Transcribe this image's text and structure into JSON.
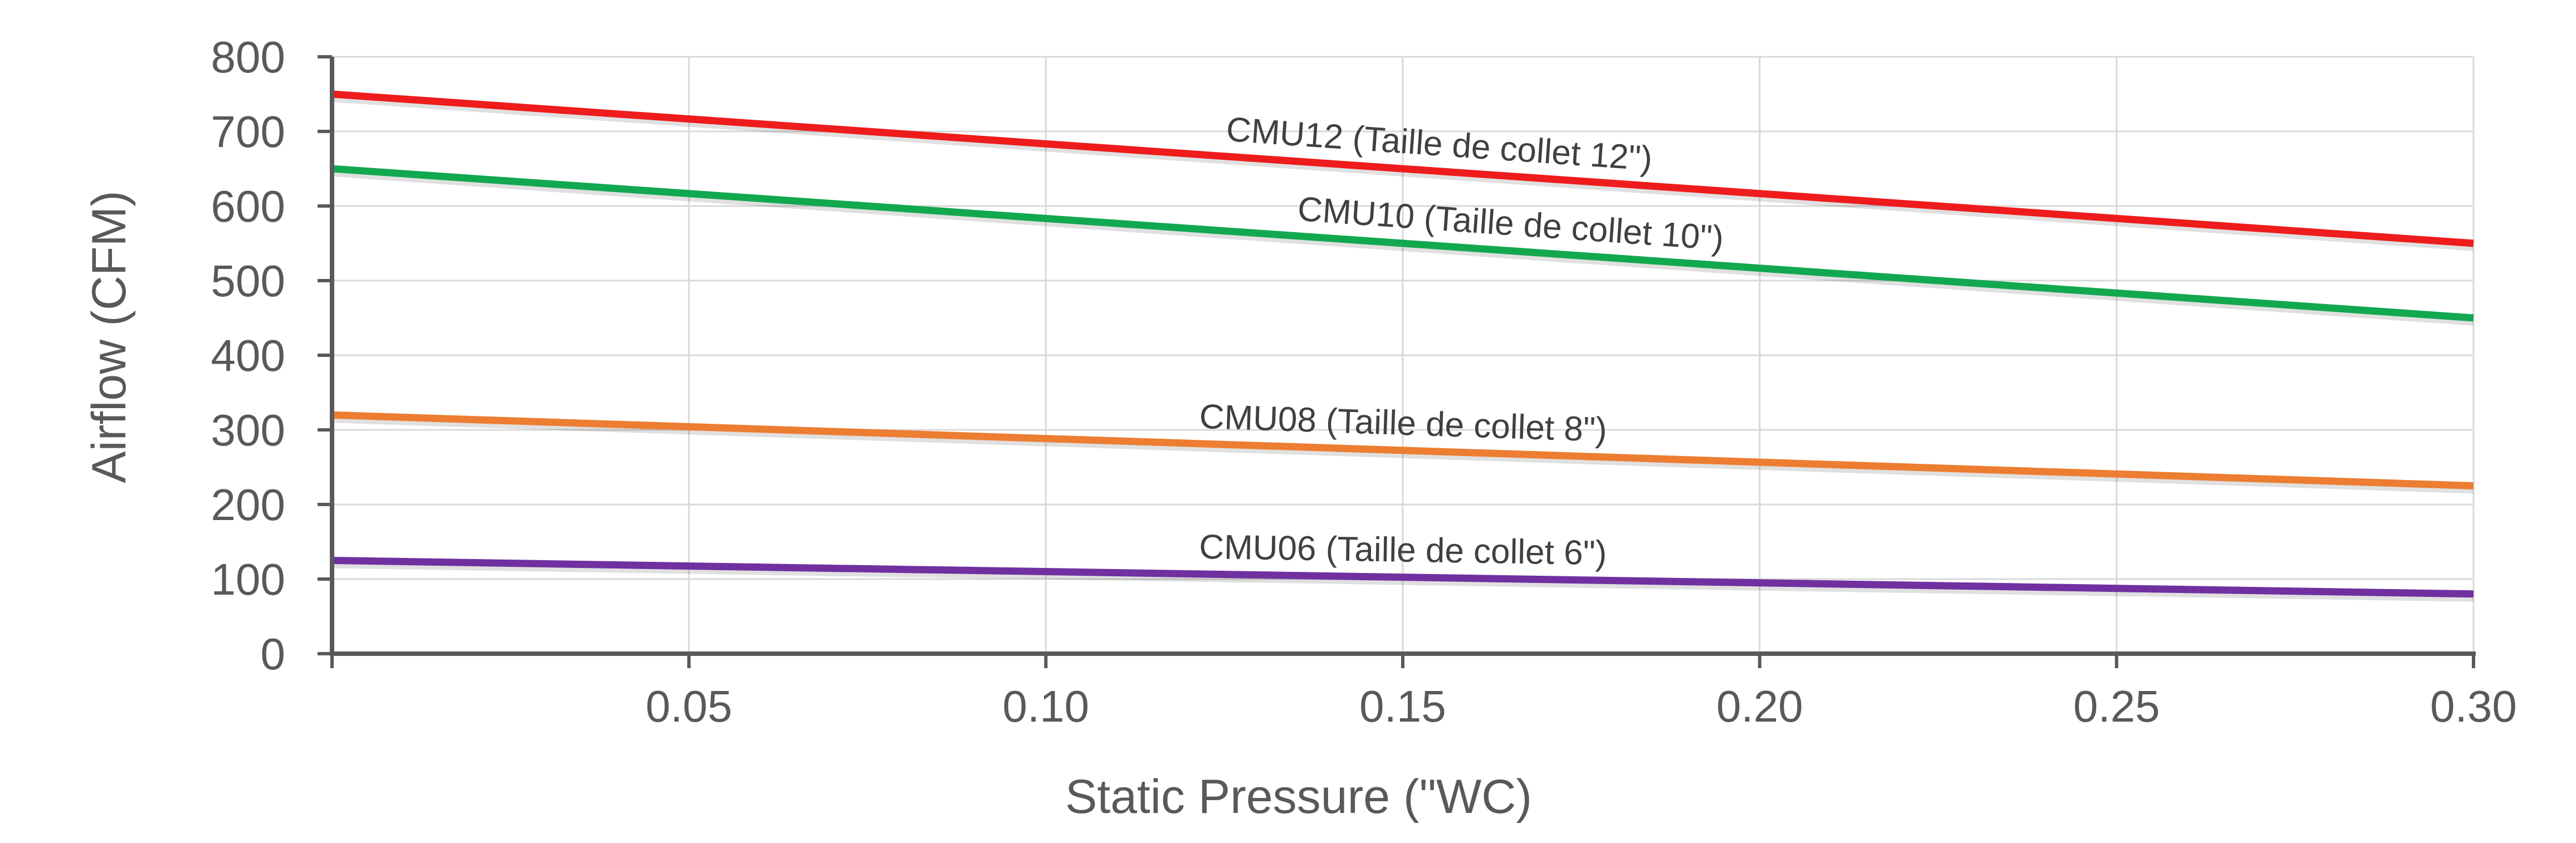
{
  "chart_data": {
    "type": "line",
    "xlabel": "Static Pressure (\"WC)",
    "ylabel": "Airflow (CFM)",
    "xlim": [
      0,
      0.3
    ],
    "ylim": [
      0,
      800
    ],
    "x_ticks": [
      0.05,
      0.1,
      0.15,
      0.2,
      0.25,
      0.3
    ],
    "x_tick_labels": [
      "0.05",
      "0.10",
      "0.15",
      "0.20",
      "0.25",
      "0.30"
    ],
    "y_ticks": [
      0,
      100,
      200,
      300,
      400,
      500,
      600,
      700,
      800
    ],
    "y_tick_labels": [
      "0",
      "100",
      "200",
      "300",
      "400",
      "500",
      "600",
      "700",
      "800"
    ],
    "grid": true,
    "legend": "none",
    "series": [
      {
        "name": "CMU12 (Taille de collet 12\")",
        "color": "#ee1c1c",
        "x": [
          0,
          0.3
        ],
        "y": [
          750,
          550
        ],
        "label_x": 0.155
      },
      {
        "name": "CMU10 (Taille de collet 10\")",
        "color": "#12a84f",
        "x": [
          0,
          0.3
        ],
        "y": [
          650,
          450
        ],
        "label_x": 0.165
      },
      {
        "name": "CMU08 (Taille de collet 8\")",
        "color": "#ed7d31",
        "x": [
          0,
          0.3
        ],
        "y": [
          320,
          225
        ],
        "label_x": 0.15
      },
      {
        "name": "CMU06 (Taille de collet 6\")",
        "color": "#7030a0",
        "x": [
          0,
          0.3
        ],
        "y": [
          125,
          80
        ],
        "label_x": 0.15
      }
    ]
  }
}
